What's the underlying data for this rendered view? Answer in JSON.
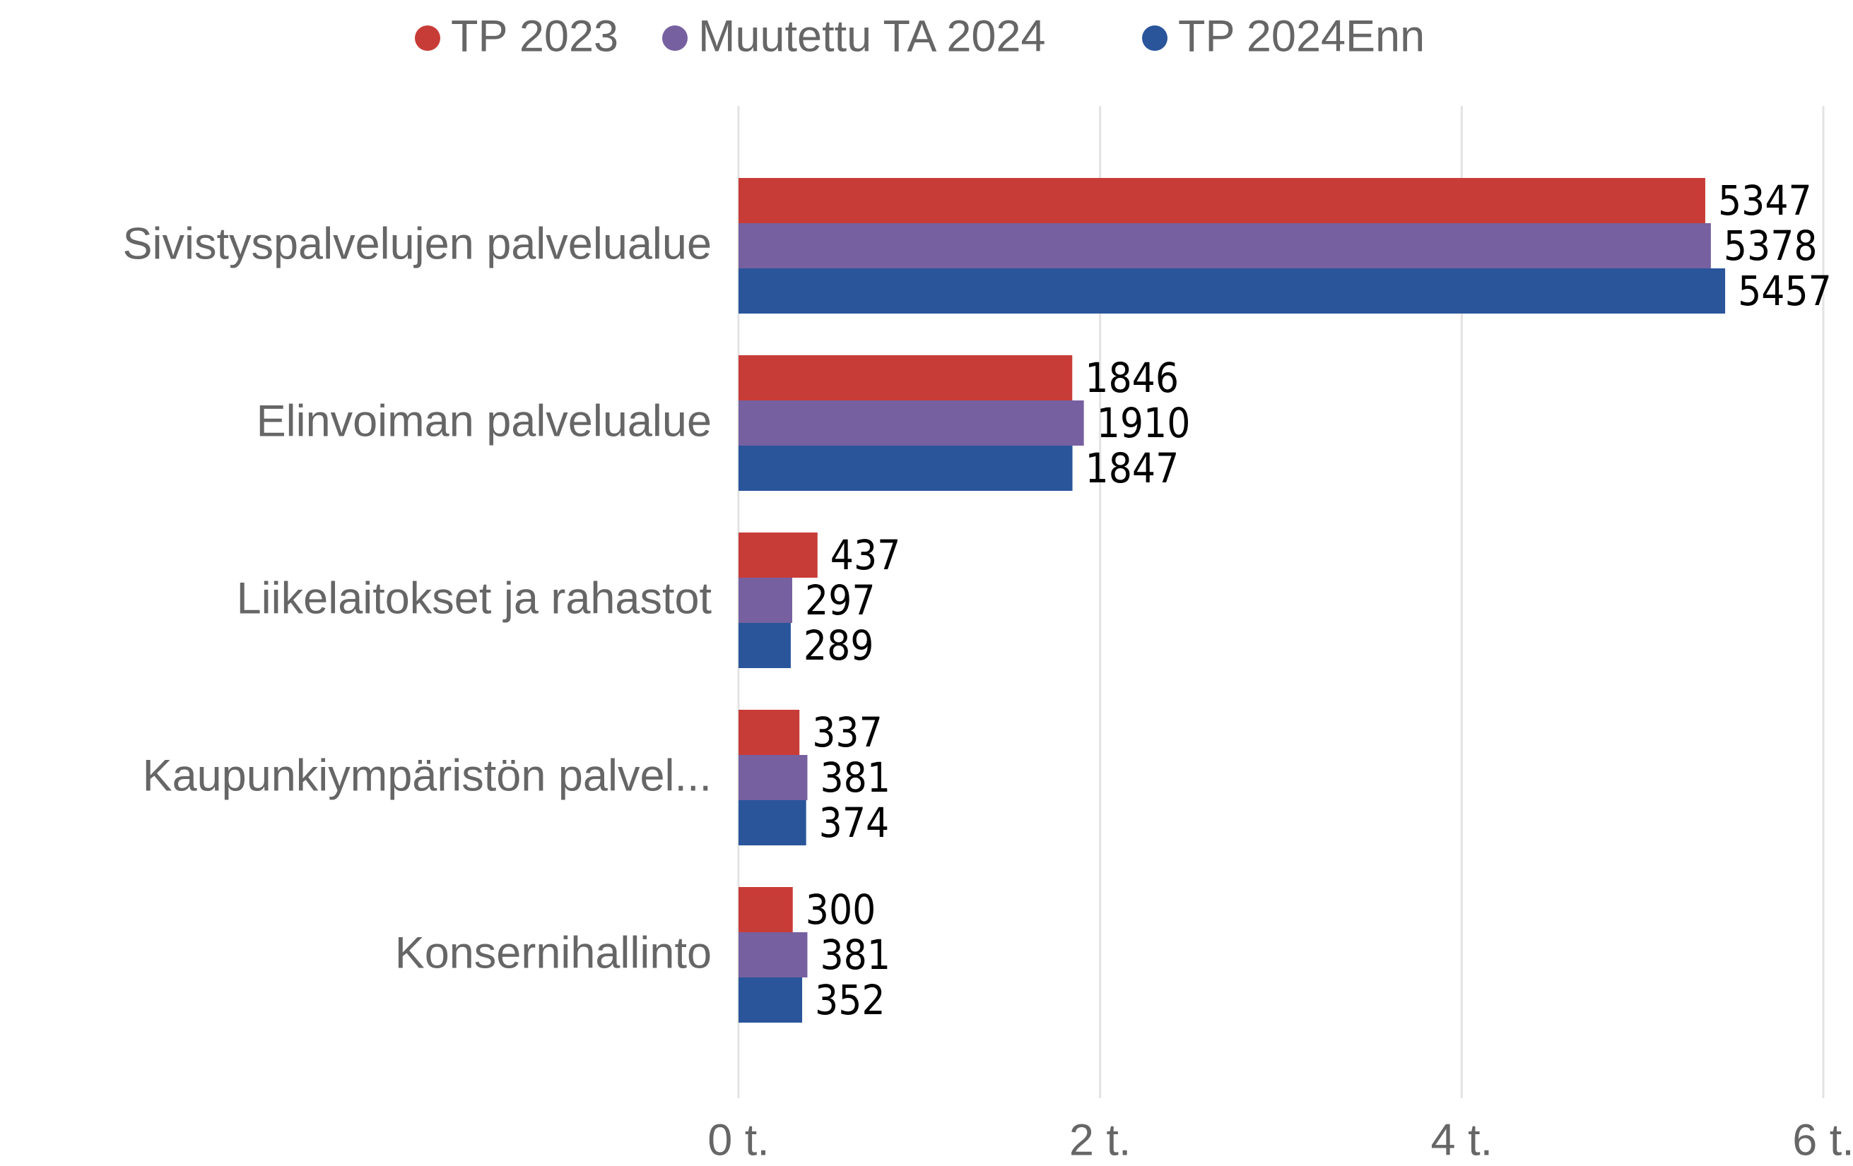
{
  "chart_data": {
    "type": "bar",
    "orientation": "horizontal",
    "categories": [
      "Sivistyspalvelujen palvelualue",
      "Elinvoiman palvelualue",
      "Liikelaitokset ja rahastot",
      "Kaupunkiympäristön palvel...",
      "Konsernihallinto"
    ],
    "series": [
      {
        "name": "TP 2023",
        "color": "#c83c37",
        "values": [
          5347,
          1846,
          437,
          337,
          300
        ]
      },
      {
        "name": "Muutettu TA 2024",
        "color": "#7660a0",
        "values": [
          5378,
          1910,
          297,
          381,
          381
        ]
      },
      {
        "name": "TP 2024Enn",
        "color": "#2a559b",
        "values": [
          5457,
          1847,
          289,
          374,
          352
        ]
      }
    ],
    "xlim": [
      0,
      6000
    ],
    "xticks": [
      {
        "value": 0,
        "label": "0 t."
      },
      {
        "value": 2000,
        "label": "2 t."
      },
      {
        "value": 4000,
        "label": "4 t."
      },
      {
        "value": 6000,
        "label": "6 t."
      }
    ],
    "grid": true,
    "legend": "top"
  }
}
